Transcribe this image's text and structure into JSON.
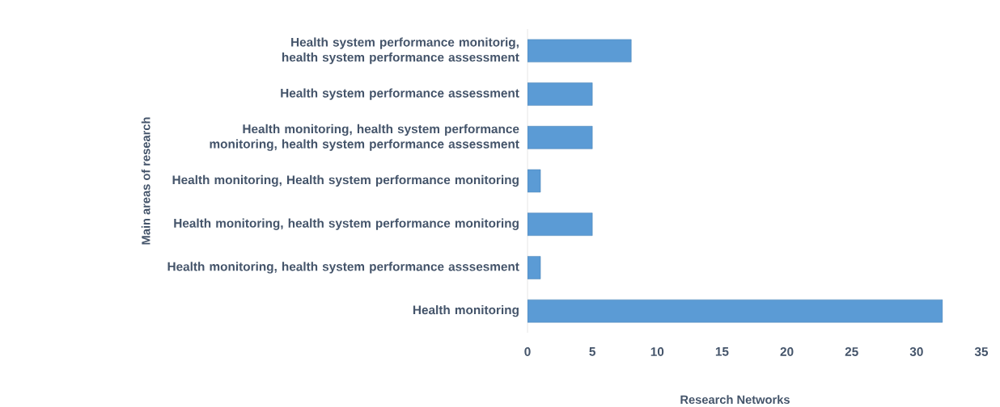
{
  "chart_data": {
    "type": "bar",
    "orientation": "horizontal",
    "categories": [
      "Health system performance monitorig, health system performance assessment",
      "Health system performance assessment",
      "Health monitoring, health system performance monitoring, health system performance assessment",
      "Health monitoring, Health system performance monitoring",
      "Health monitoring, health system performance monitoring",
      "Health monitoring, health system performance asssesment",
      "Health monitoring"
    ],
    "values": [
      8,
      5,
      5,
      1,
      5,
      1,
      32
    ],
    "color": "#5b9bd5",
    "xlabel": "Research Networks",
    "ylabel": "Main areas of research",
    "xlim": [
      0,
      35
    ],
    "xticks": [
      0,
      5,
      10,
      15,
      20,
      25,
      30,
      35
    ]
  }
}
